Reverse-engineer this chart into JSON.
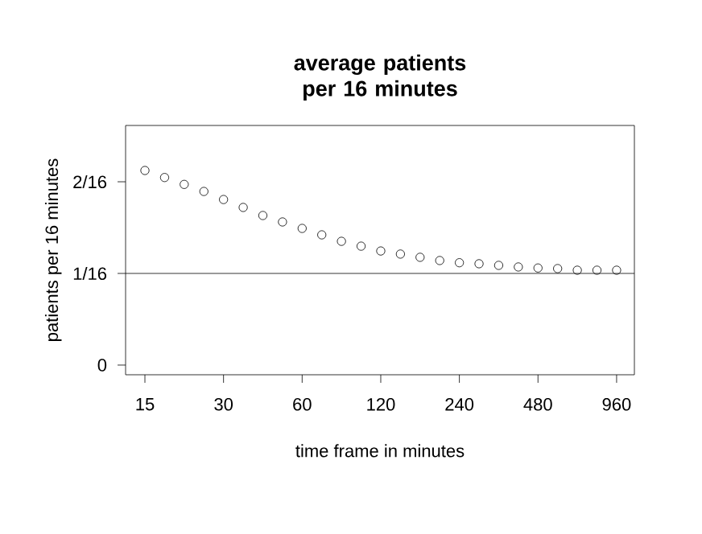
{
  "chart_data": {
    "type": "scatter",
    "title": "average patients per 16 minutes",
    "xlabel": "time frame in minutes",
    "ylabel": "patients per 16 minutes",
    "log": "x",
    "marker": "circle",
    "x": [
      15,
      17.84,
      21.21,
      25.23,
      30,
      35.68,
      42.43,
      50.45,
      60,
      71.35,
      84.85,
      100.9,
      120,
      142.7,
      169.7,
      201.8,
      240,
      285.4,
      339.4,
      403.6,
      480,
      570.8,
      678.8,
      807.3,
      960
    ],
    "series": [
      {
        "color": "#000000",
        "values": [
          0.1327,
          0.1279,
          0.1232,
          0.1184,
          0.1129,
          0.1075,
          0.102,
          0.0976,
          0.0932,
          0.0888,
          0.0844,
          0.0811,
          0.0778,
          0.0757,
          0.0735,
          0.0713,
          0.0698,
          0.0691,
          0.068,
          0.0669,
          0.0662,
          0.0658,
          0.0647,
          0.0647,
          0.0647
        ]
      }
    ],
    "xlim": [
      12.65,
      1123
    ],
    "ylim": [
      -0.0066,
      0.1634
    ],
    "xticks": [
      15,
      30,
      60,
      120,
      240,
      480,
      960
    ],
    "yticks": [
      {
        "value": 0,
        "label": "0"
      },
      {
        "value": 0.0625,
        "label": "1/16"
      },
      {
        "value": 0.125,
        "label": "2/16"
      }
    ],
    "ref_lines": [
      {
        "axis": "y",
        "value": 0.0625,
        "color": "#000000"
      }
    ]
  }
}
